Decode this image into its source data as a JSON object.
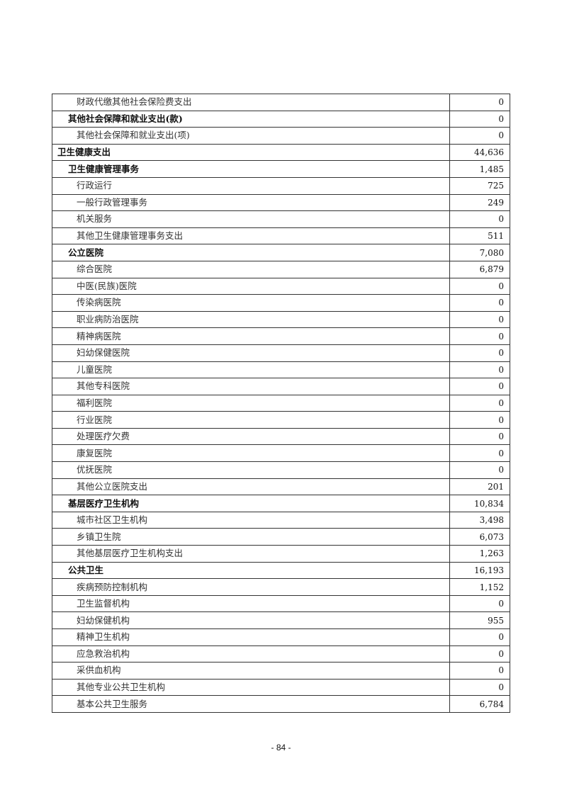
{
  "table": {
    "rows": [
      {
        "name": "财政代缴其他社会保险费支出",
        "value": "0",
        "level": 2
      },
      {
        "name": "其他社会保障和就业支出(款)",
        "value": "0",
        "level": 1
      },
      {
        "name": "其他社会保障和就业支出(项)",
        "value": "0",
        "level": 2
      },
      {
        "name": "卫生健康支出",
        "value": "44,636",
        "level": 0
      },
      {
        "name": "卫生健康管理事务",
        "value": "1,485",
        "level": 1
      },
      {
        "name": "行政运行",
        "value": "725",
        "level": 2
      },
      {
        "name": "一般行政管理事务",
        "value": "249",
        "level": 2
      },
      {
        "name": "机关服务",
        "value": "0",
        "level": 2
      },
      {
        "name": "其他卫生健康管理事务支出",
        "value": "511",
        "level": 2
      },
      {
        "name": "公立医院",
        "value": "7,080",
        "level": 1
      },
      {
        "name": "综合医院",
        "value": "6,879",
        "level": 2
      },
      {
        "name": "中医(民族)医院",
        "value": "0",
        "level": 2
      },
      {
        "name": "传染病医院",
        "value": "0",
        "level": 2
      },
      {
        "name": "职业病防治医院",
        "value": "0",
        "level": 2
      },
      {
        "name": "精神病医院",
        "value": "0",
        "level": 2
      },
      {
        "name": "妇幼保健医院",
        "value": "0",
        "level": 2
      },
      {
        "name": "儿童医院",
        "value": "0",
        "level": 2
      },
      {
        "name": "其他专科医院",
        "value": "0",
        "level": 2
      },
      {
        "name": "福利医院",
        "value": "0",
        "level": 2
      },
      {
        "name": "行业医院",
        "value": "0",
        "level": 2
      },
      {
        "name": "处理医疗欠费",
        "value": "0",
        "level": 2
      },
      {
        "name": "康复医院",
        "value": "0",
        "level": 2
      },
      {
        "name": "优抚医院",
        "value": "0",
        "level": 2
      },
      {
        "name": "其他公立医院支出",
        "value": "201",
        "level": 2
      },
      {
        "name": "基层医疗卫生机构",
        "value": "10,834",
        "level": 1
      },
      {
        "name": "城市社区卫生机构",
        "value": "3,498",
        "level": 2
      },
      {
        "name": "乡镇卫生院",
        "value": "6,073",
        "level": 2
      },
      {
        "name": "其他基层医疗卫生机构支出",
        "value": "1,263",
        "level": 2
      },
      {
        "name": "公共卫生",
        "value": "16,193",
        "level": 1
      },
      {
        "name": "疾病预防控制机构",
        "value": "1,152",
        "level": 2
      },
      {
        "name": "卫生监督机构",
        "value": "0",
        "level": 2
      },
      {
        "name": "妇幼保健机构",
        "value": "955",
        "level": 2
      },
      {
        "name": "精神卫生机构",
        "value": "0",
        "level": 2
      },
      {
        "name": "应急救治机构",
        "value": "0",
        "level": 2
      },
      {
        "name": "采供血机构",
        "value": "0",
        "level": 2
      },
      {
        "name": "其他专业公共卫生机构",
        "value": "0",
        "level": 2
      },
      {
        "name": "基本公共卫生服务",
        "value": "6,784",
        "level": 2
      }
    ]
  },
  "footer": {
    "page_number": "- 84 -"
  }
}
